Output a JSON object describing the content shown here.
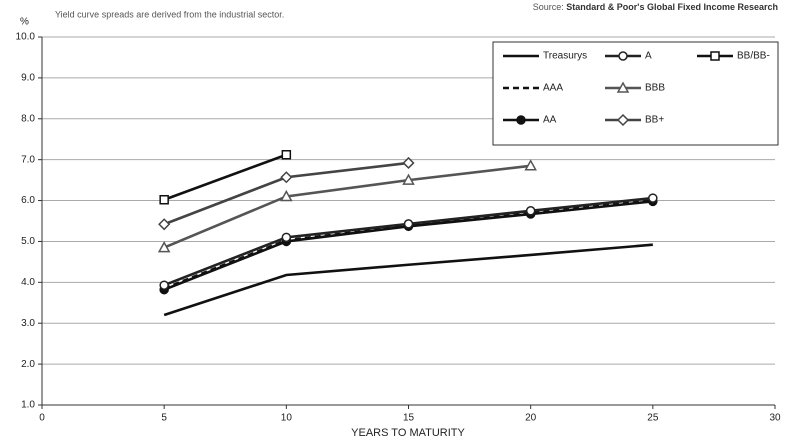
{
  "chart_data": {
    "type": "line",
    "note": "Yield curve spreads are derived from the industrial sector.",
    "source_prefix": "Source:",
    "source": "Standard & Poor's Global Fixed Income Research",
    "y_unit": "%",
    "x_label": "YEARS TO MATURITY",
    "x": [
      5,
      10,
      15,
      20,
      25
    ],
    "xlim": [
      0,
      30
    ],
    "xticks": [
      0,
      5,
      10,
      15,
      20,
      25,
      30
    ],
    "ylim": [
      1,
      10
    ],
    "yticks": [
      {
        "value": 1,
        "label": "1.0"
      },
      {
        "value": 2,
        "label": "2.0"
      },
      {
        "value": 3,
        "label": "3.0"
      },
      {
        "value": 4,
        "label": "4.0"
      },
      {
        "value": 5,
        "label": "5.0"
      },
      {
        "value": 6,
        "label": "6.0"
      },
      {
        "value": 7,
        "label": "7.0"
      },
      {
        "value": 8,
        "label": "8.0"
      },
      {
        "value": 9,
        "label": "9.0"
      },
      {
        "value": 10,
        "label": "10.0"
      }
    ],
    "grid": true,
    "series": [
      {
        "name": "Treasurys",
        "color": "#111111",
        "marker": "none",
        "line_style": "solid",
        "values": [
          3.2,
          4.18,
          4.43,
          4.67,
          4.92
        ]
      },
      {
        "name": "AAA",
        "color": "#111111",
        "marker": "none",
        "line_style": "dashed",
        "values": [
          3.85,
          5.03,
          5.38,
          5.7,
          6.0
        ]
      },
      {
        "name": "AA",
        "color": "#111111",
        "marker": "circle-filled",
        "line_style": "solid",
        "values": [
          3.82,
          5.0,
          5.37,
          5.67,
          5.98
        ]
      },
      {
        "name": "A",
        "color": "#222222",
        "marker": "circle",
        "line_style": "solid",
        "values": [
          3.93,
          5.1,
          5.43,
          5.75,
          6.06
        ]
      },
      {
        "name": "BBB",
        "color": "#555555",
        "marker": "triangle",
        "line_style": "solid",
        "values": [
          4.85,
          6.1,
          6.5,
          6.85,
          null
        ]
      },
      {
        "name": "BB+",
        "color": "#444444",
        "marker": "diamond",
        "line_style": "solid",
        "values": [
          5.42,
          6.57,
          6.92,
          null,
          null
        ]
      },
      {
        "name": "BB/BB-",
        "color": "#111111",
        "marker": "square",
        "line_style": "solid",
        "values": [
          6.02,
          7.12,
          null,
          null,
          null
        ]
      }
    ]
  }
}
